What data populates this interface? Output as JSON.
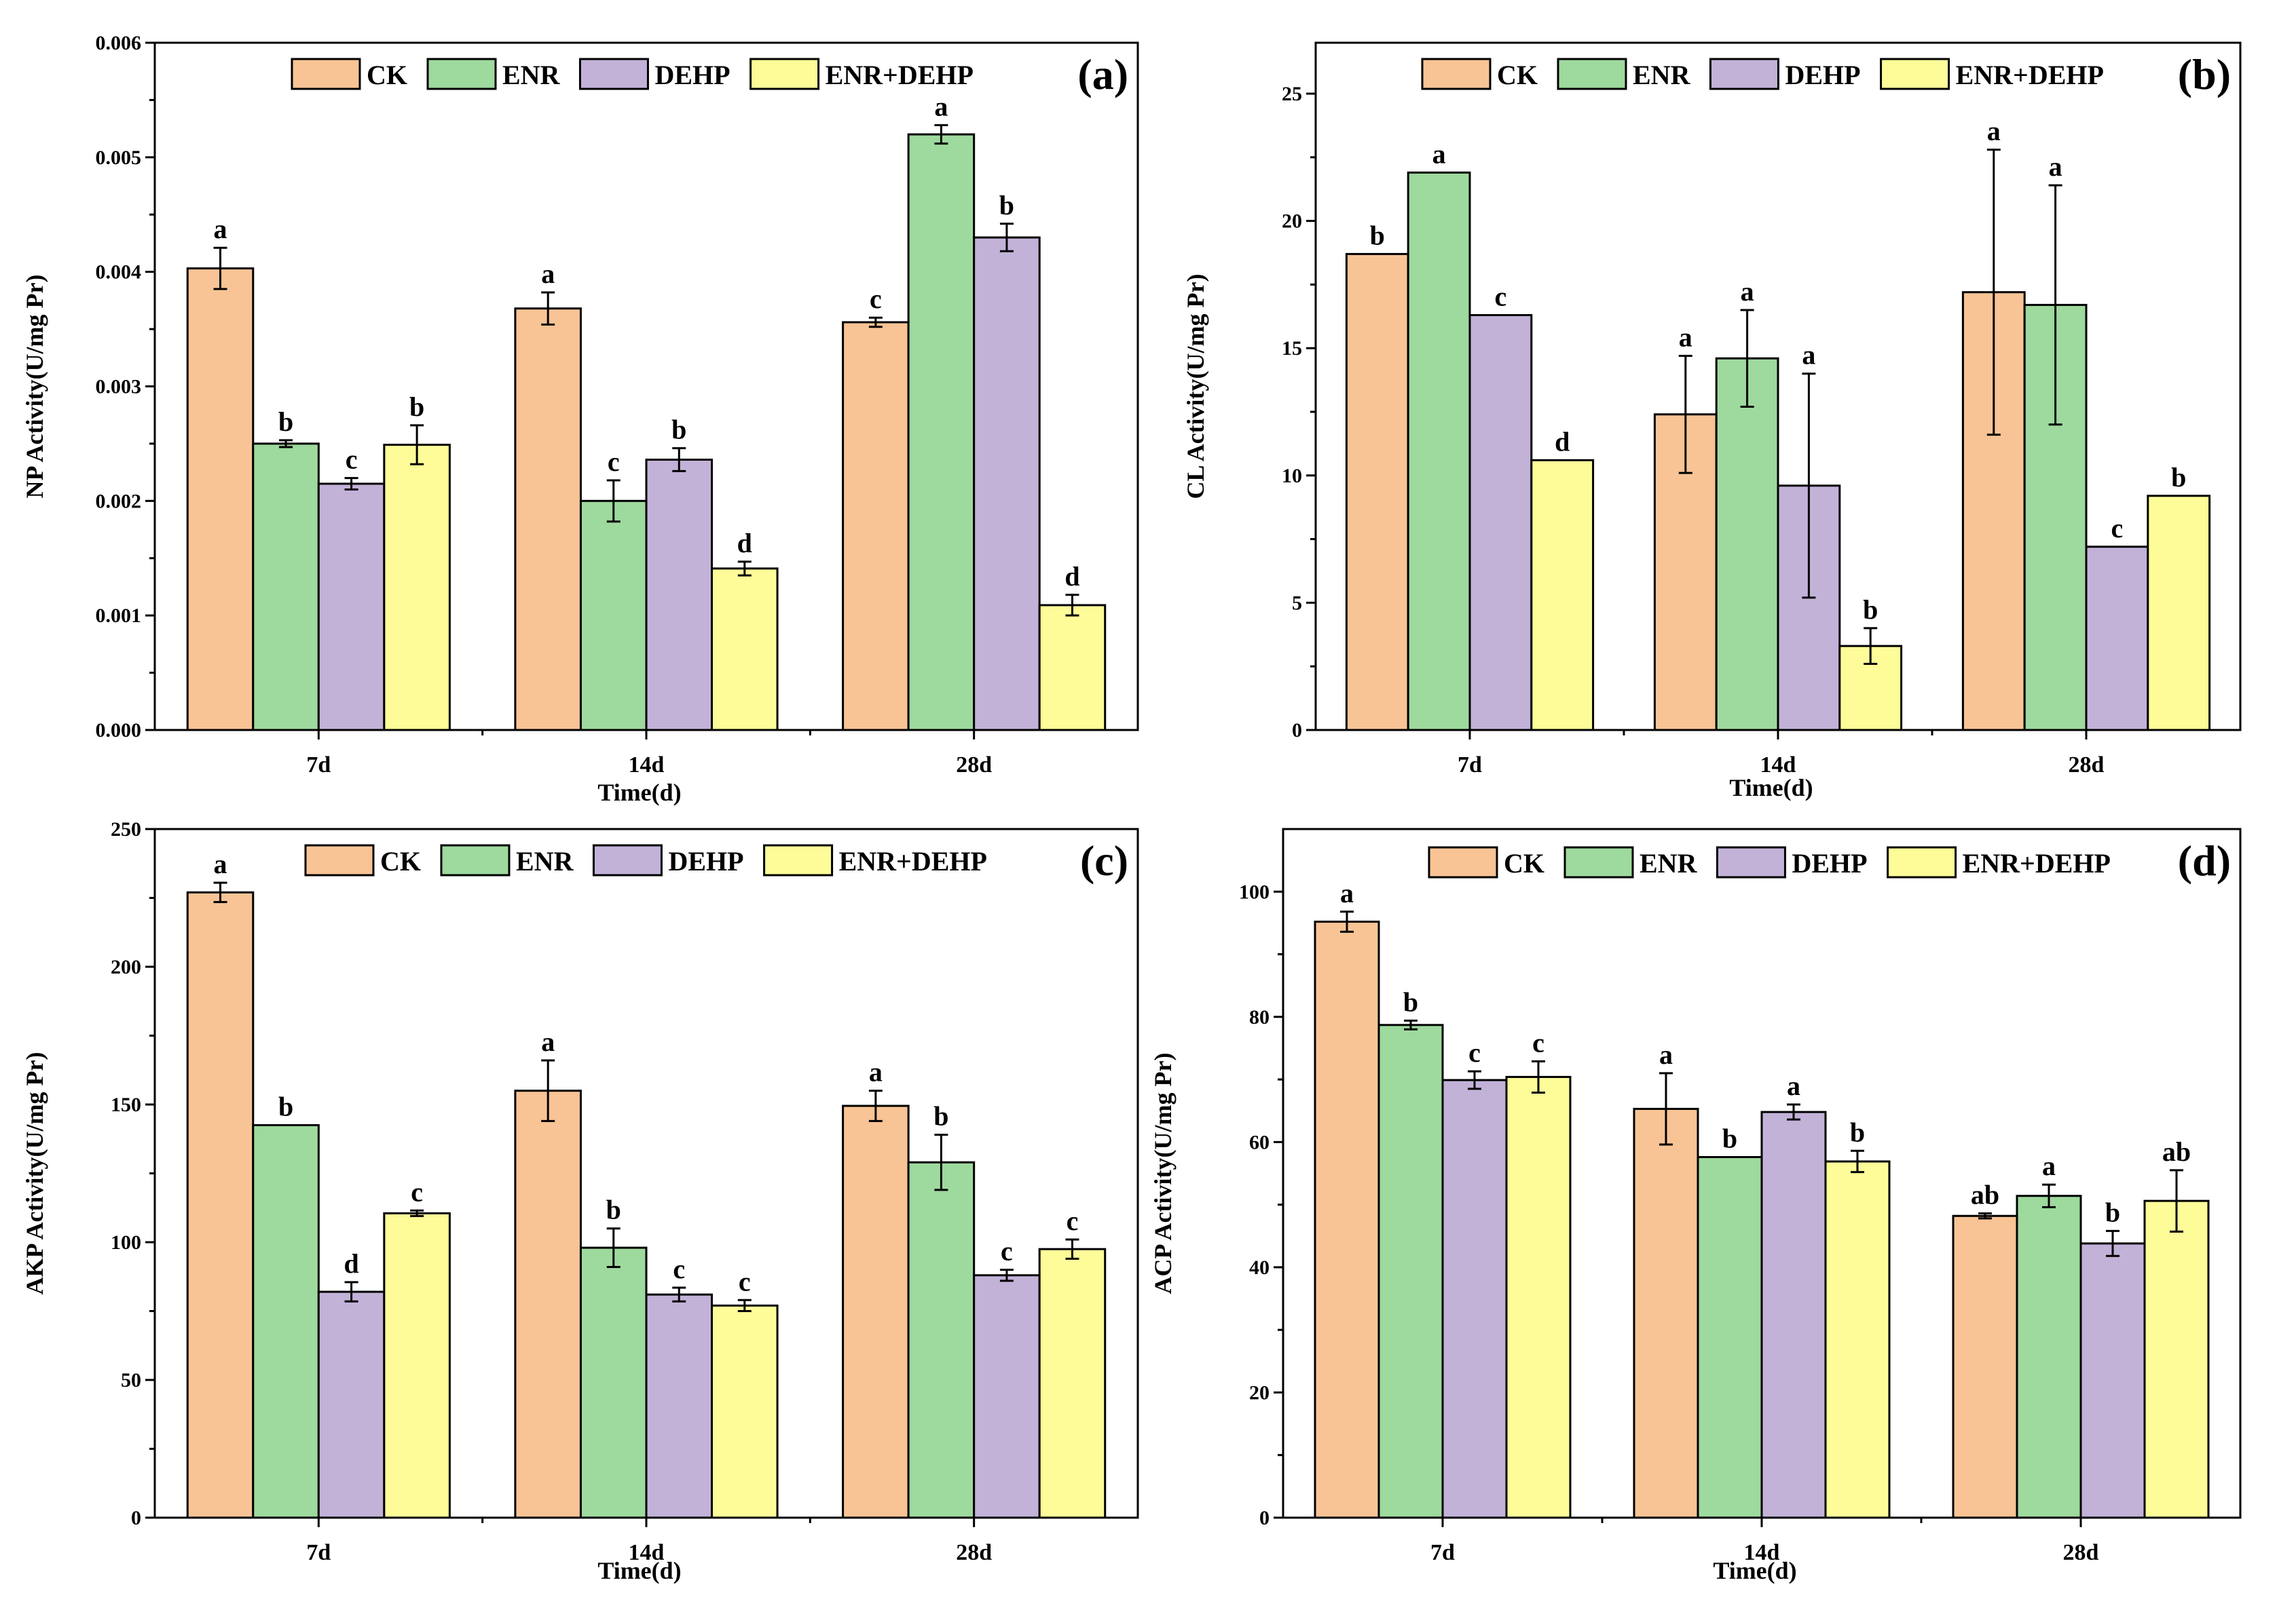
{
  "colors": {
    "CK": "#F8C495",
    "ENR": "#9ED99E",
    "DEHP": "#C2B2D8",
    "ENR+DEHP": "#FDFC99",
    "outline": "#000000"
  },
  "legend": [
    "CK",
    "ENR",
    "DEHP",
    "ENR+DEHP"
  ],
  "chart_data": [
    {
      "type": "bar",
      "panel": "(a)",
      "ylabel": "NP Activity(U/mg Pr)",
      "xlabel": "Time(d)",
      "categories": [
        "7d",
        "14d",
        "28d"
      ],
      "ylim": [
        0,
        0.006
      ],
      "yticks": [
        "0.000",
        "0.001",
        "0.002",
        "0.003",
        "0.004",
        "0.005",
        "0.006"
      ],
      "series": [
        {
          "name": "CK",
          "values": [
            0.00403,
            0.00368,
            0.00356
          ],
          "errors": [
            0.00018,
            0.00014,
            4e-05
          ],
          "labels": [
            "a",
            "a",
            "c"
          ]
        },
        {
          "name": "ENR",
          "values": [
            0.0025,
            0.002,
            0.0052
          ],
          "errors": [
            3e-05,
            0.00018,
            8e-05
          ],
          "labels": [
            "b",
            "c",
            "a"
          ]
        },
        {
          "name": "DEHP",
          "values": [
            0.00215,
            0.00236,
            0.0043
          ],
          "errors": [
            5e-05,
            0.0001,
            0.00012
          ],
          "labels": [
            "c",
            "b",
            "b"
          ]
        },
        {
          "name": "ENR+DEHP",
          "values": [
            0.00249,
            0.00141,
            0.00109
          ],
          "errors": [
            0.00017,
            6e-05,
            9e-05
          ],
          "labels": [
            "b",
            "d",
            "d"
          ]
        }
      ]
    },
    {
      "type": "bar",
      "panel": "(b)",
      "ylabel": "CL Activity(U/mg Pr)",
      "xlabel": "Time(d)",
      "categories": [
        "7d",
        "14d",
        "28d"
      ],
      "ylim": [
        0,
        27
      ],
      "yticks": [
        "0",
        "5",
        "10",
        "15",
        "20",
        "25"
      ],
      "series": [
        {
          "name": "CK",
          "values": [
            18.7,
            12.4,
            17.2
          ],
          "errors": [
            0,
            2.3,
            5.6
          ],
          "labels": [
            "b",
            "a",
            "a"
          ]
        },
        {
          "name": "ENR",
          "values": [
            21.9,
            14.6,
            16.7
          ],
          "errors": [
            0,
            1.9,
            4.7
          ],
          "labels": [
            "a",
            "a",
            "a"
          ]
        },
        {
          "name": "DEHP",
          "values": [
            16.3,
            9.6,
            7.2
          ],
          "errors": [
            0,
            4.4,
            0
          ],
          "labels": [
            "c",
            "a",
            "c"
          ]
        },
        {
          "name": "ENR+DEHP",
          "values": [
            10.6,
            3.3,
            9.2
          ],
          "errors": [
            0,
            0.7,
            0
          ],
          "labels": [
            "d",
            "b",
            "b"
          ]
        }
      ]
    },
    {
      "type": "bar",
      "panel": "(c)",
      "ylabel": "AKP Activity(U/mg Pr)",
      "xlabel": "Time(d)",
      "categories": [
        "7d",
        "14d",
        "28d"
      ],
      "ylim": [
        0,
        250
      ],
      "yticks": [
        "0",
        "50",
        "100",
        "150",
        "200",
        "250"
      ],
      "series": [
        {
          "name": "CK",
          "values": [
            227,
            155,
            149.5
          ],
          "errors": [
            3.5,
            11,
            5.5
          ],
          "labels": [
            "a",
            "a",
            "a"
          ]
        },
        {
          "name": "ENR",
          "values": [
            142.5,
            98,
            129
          ],
          "errors": [
            0,
            7,
            10
          ],
          "labels": [
            "b",
            "b",
            "b"
          ]
        },
        {
          "name": "DEHP",
          "values": [
            82,
            81,
            88
          ],
          "errors": [
            3.5,
            2.5,
            2
          ],
          "labels": [
            "d",
            "c",
            "c"
          ]
        },
        {
          "name": "ENR+DEHP",
          "values": [
            110.5,
            77,
            97.5
          ],
          "errors": [
            1,
            2,
            3.5
          ],
          "labels": [
            "c",
            "c",
            "c"
          ]
        }
      ]
    },
    {
      "type": "bar",
      "panel": "(d)",
      "ylabel": "ACP Activity(U/mg Pr)",
      "xlabel": "Time(d)",
      "categories": [
        "7d",
        "14d",
        "28d"
      ],
      "ylim": [
        0,
        110
      ],
      "yticks": [
        "0",
        "20",
        "40",
        "60",
        "80",
        "100"
      ],
      "series": [
        {
          "name": "CK",
          "values": [
            95.2,
            65.3,
            48.2
          ],
          "errors": [
            1.6,
            5.7,
            0.4
          ],
          "labels": [
            "a",
            "a",
            "ab"
          ]
        },
        {
          "name": "ENR",
          "values": [
            78.7,
            57.6,
            51.4
          ],
          "errors": [
            0.7,
            0,
            1.8
          ],
          "labels": [
            "b",
            "b",
            "a"
          ]
        },
        {
          "name": "DEHP",
          "values": [
            69.9,
            64.8,
            43.8
          ],
          "errors": [
            1.4,
            1.2,
            2
          ],
          "labels": [
            "c",
            "a",
            "b"
          ]
        },
        {
          "name": "ENR+DEHP",
          "values": [
            70.4,
            56.9,
            50.6
          ],
          "errors": [
            2.5,
            1.7,
            4.9
          ],
          "labels": [
            "c",
            "b",
            "ab"
          ]
        }
      ]
    }
  ]
}
